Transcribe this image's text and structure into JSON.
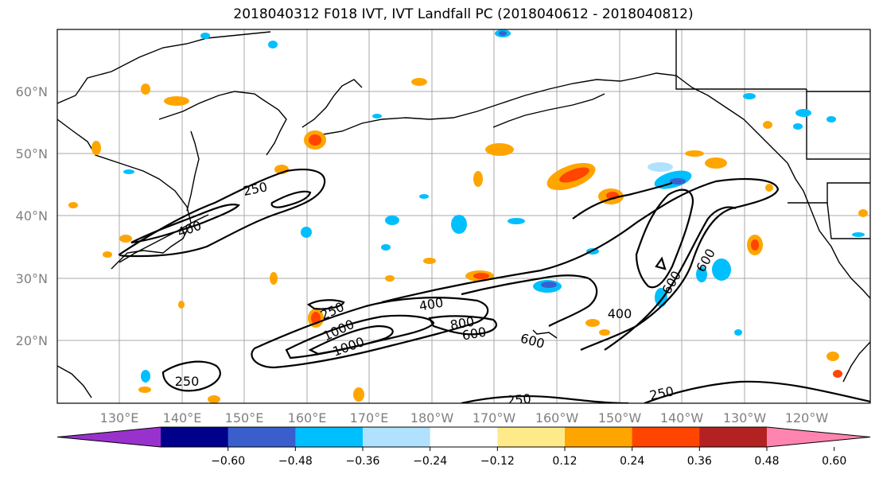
{
  "title": "2018040312 F018 IVT, IVT Landfall PC (2018040612 - 2018040812)",
  "lat_labels": [
    "60°N",
    "50°N",
    "40°N",
    "30°N",
    "20°N"
  ],
  "lon_labels": [
    "130°E",
    "140°E",
    "150°E",
    "160°E",
    "170°E",
    "180°W",
    "170°W",
    "160°W",
    "150°W",
    "140°W",
    "130°W",
    "120°W"
  ],
  "contour_labels": [
    "250",
    "400",
    "400",
    "600",
    "600",
    "800",
    "1000",
    "1000",
    "250",
    "400",
    "600",
    "600",
    "250",
    "250",
    "250"
  ],
  "colorbar": {
    "ticks": [
      "−0.60",
      "−0.48",
      "−0.36",
      "−0.24",
      "−0.12",
      "0.12",
      "0.24",
      "0.36",
      "0.48",
      "0.60"
    ],
    "colors": [
      "#9932cc",
      "#00008b",
      "#3a5fcd",
      "#00bfff",
      "#b0e2ff",
      "#ffffff",
      "#ffea8a",
      "#ffa500",
      "#ff4500",
      "#b22222",
      "#ff85b0"
    ]
  }
}
